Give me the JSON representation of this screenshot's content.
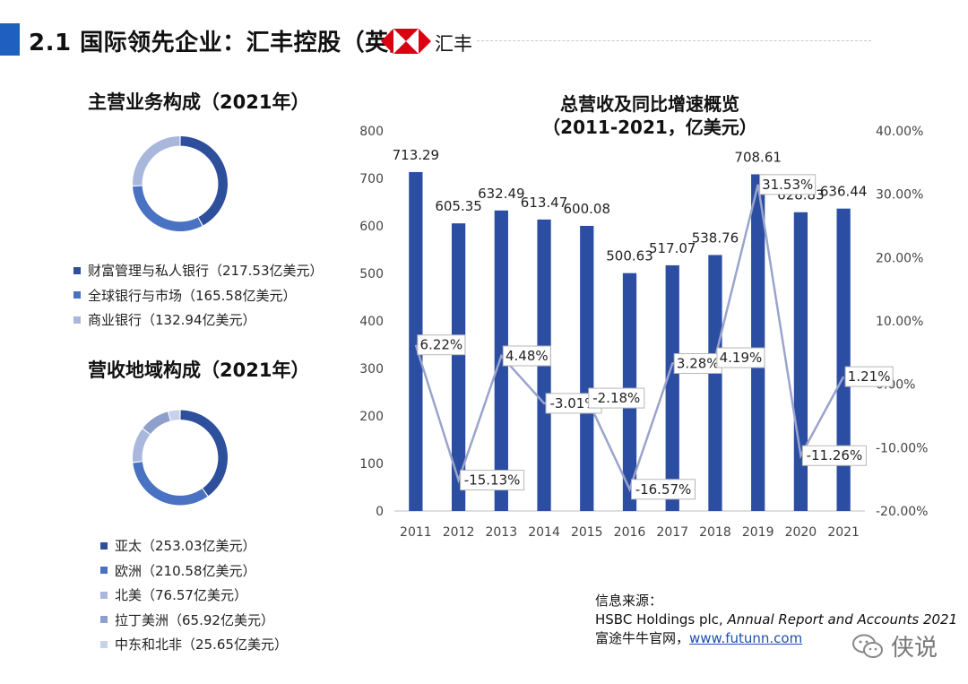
{
  "header": {
    "title": "2.1 国际领先企业：汇丰控股（英国）",
    "logo_text": "汇丰",
    "accent_color": "#1f5fbf"
  },
  "business_mix": {
    "title": "主营业务构成（2021年）",
    "items": [
      {
        "label": "财富管理与私人银行（217.53亿美元）",
        "value": 217.53,
        "color": "#2e4f9c"
      },
      {
        "label": "全球银行与市场（165.58亿美元）",
        "value": 165.58,
        "color": "#4a72c2"
      },
      {
        "label": "商业银行（132.94亿美元）",
        "value": 132.94,
        "color": "#a9b7dc"
      }
    ]
  },
  "region_mix": {
    "title": "营收地域构成（2021年）",
    "items": [
      {
        "label": "亚太（253.03亿美元）",
        "value": 253.03,
        "color": "#2e4f9c"
      },
      {
        "label": "欧洲（210.58亿美元）",
        "value": 210.58,
        "color": "#4a72c2"
      },
      {
        "label": "北美（76.57亿美元）",
        "value": 76.57,
        "color": "#a9b7dc"
      },
      {
        "label": "拉丁美洲（65.92亿美元）",
        "value": 65.92,
        "color": "#8e9fcc"
      },
      {
        "label": "中东和北非（25.65亿美元）",
        "value": 25.65,
        "color": "#c5d2ea"
      }
    ]
  },
  "chart_data": {
    "type": "bar",
    "title_line1": "总营收及同比增速概览",
    "title_line2": "（2011-2021，亿美元）",
    "categories": [
      "2011",
      "2012",
      "2013",
      "2014",
      "2015",
      "2016",
      "2017",
      "2018",
      "2019",
      "2020",
      "2021"
    ],
    "series": [
      {
        "type": "bar",
        "axis": "left",
        "color": "#2b4ea3",
        "values": [
          713.29,
          605.35,
          632.49,
          613.47,
          600.08,
          500.63,
          517.07,
          538.76,
          708.61,
          628.83,
          636.44
        ],
        "labels": [
          "713.29",
          "605.35",
          "632.49",
          "613.47",
          "600.08",
          "500.63",
          "517.07",
          "538.76",
          "708.61",
          "628.83",
          "636.44"
        ]
      },
      {
        "type": "line",
        "axis": "right",
        "color": "#9aa4cc",
        "values": [
          6.22,
          -15.13,
          4.48,
          -3.01,
          -2.18,
          -16.57,
          3.28,
          4.19,
          31.53,
          -11.26,
          1.21
        ],
        "labels": [
          "6.22%",
          "-15.13%",
          "4.48%",
          "-3.01%",
          "-2.18%",
          "-16.57%",
          "3.28%",
          "4.19%",
          "31.53%",
          "-11.26%",
          "1.21%"
        ]
      }
    ],
    "y_left": {
      "min": 0,
      "max": 800,
      "ticks": [
        "0",
        "100",
        "200",
        "300",
        "400",
        "500",
        "600",
        "700",
        "800"
      ]
    },
    "y_right": {
      "min": -20,
      "max": 40,
      "ticks": [
        "-20.00%",
        "-10.00%",
        "0.00%",
        "10.00%",
        "20.00%",
        "30.00%",
        "40.00%"
      ]
    },
    "grid": false,
    "legend": "none"
  },
  "source": {
    "heading": "信息来源：",
    "line1_plain": "HSBC Holdings plc, ",
    "line1_italic": "Annual Report and Accounts 2021",
    "line2_plain": "富途牛牛官网，",
    "line2_link": "www.futunn.com"
  },
  "watermark": {
    "text": "侠说"
  }
}
